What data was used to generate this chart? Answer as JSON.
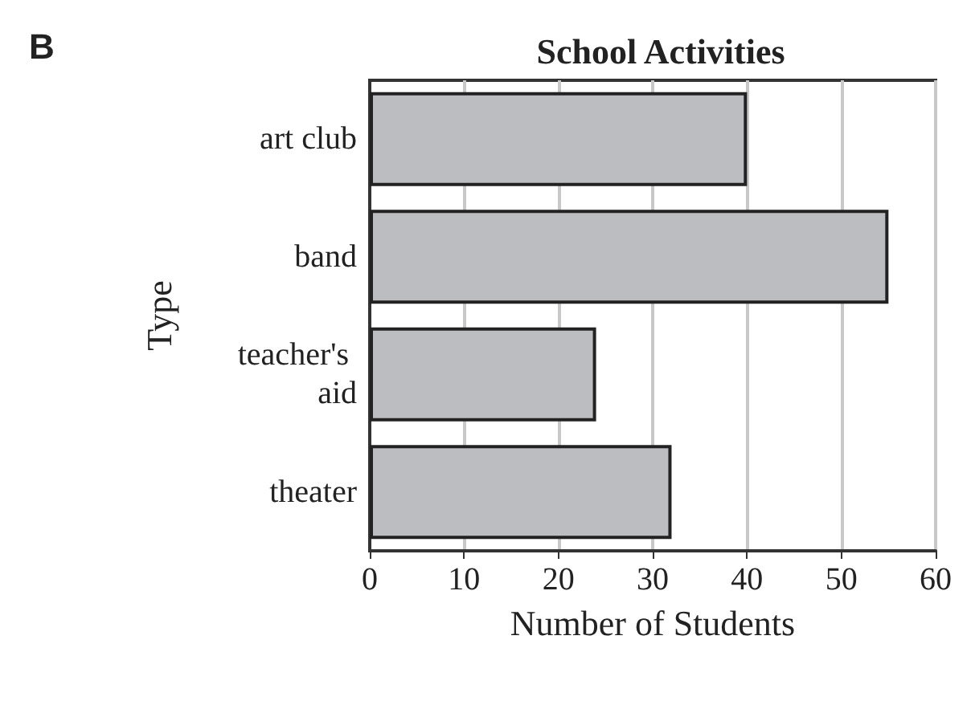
{
  "chart_data": {
    "type": "bar",
    "orientation": "horizontal",
    "title": "School Activities",
    "annotations": [
      "B"
    ],
    "xlabel": "Number of Students",
    "ylabel": "Type",
    "categories": [
      "art club",
      "band",
      "teacher's aid",
      "theater"
    ],
    "values": [
      40,
      55,
      24,
      32
    ],
    "color": "#bcbdc0",
    "xlim": [
      0,
      60
    ],
    "xticks": [
      0,
      10,
      20,
      30,
      40,
      50,
      60
    ],
    "grid": "x"
  }
}
